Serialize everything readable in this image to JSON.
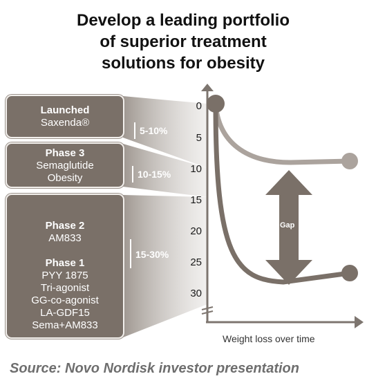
{
  "title": {
    "line1": "Develop a leading portfolio",
    "line2": "of superior treatment",
    "line3": "solutions for obesity"
  },
  "boxes": [
    {
      "heading": "Launched",
      "items": [
        "Saxenda®"
      ],
      "range": "5-10%"
    },
    {
      "heading": "Phase 3",
      "items": [
        "Semaglutide",
        "Obesity"
      ],
      "range": "10-15%"
    },
    {
      "heading": "Phase 2",
      "items": [
        "AM833"
      ],
      "heading2": "Phase 1",
      "items2": [
        "PYY 1875",
        "Tri-agonist",
        "GG-co-agonist",
        "LA-GDF15",
        "Sema+AM833"
      ],
      "range": "15-30%"
    }
  ],
  "axis": {
    "ticks": [
      "0",
      "5",
      "10",
      "15",
      "20",
      "25",
      "30"
    ],
    "xlabel": "Weight loss over time"
  },
  "gap_label": "Gap",
  "source": "Source: Novo Nordisk investor presentation",
  "colors": {
    "box": "#7a7068",
    "curve_light": "#aba39d",
    "curve_dark": "#7a7068",
    "axis": "#7d756f"
  }
}
